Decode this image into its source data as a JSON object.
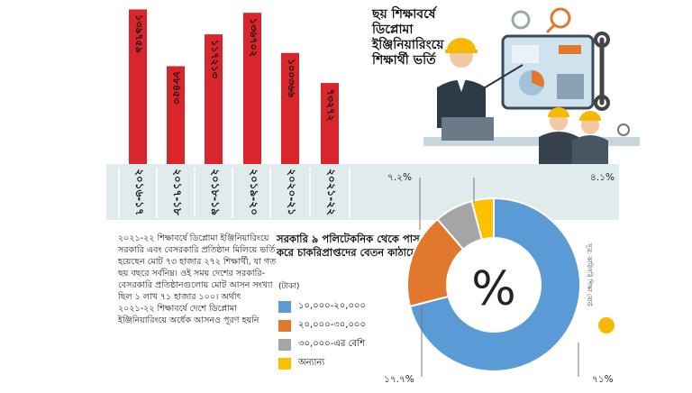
{
  "title": "ছয় শিক্ষাবর্ষে ডিপ্লোমা ইঞ্জিনিয়ারিংয়ে শিক্ষার্থী ভর্তি",
  "paragraph": "২০২১-২২ শিক্ষাবর্ষে ডিপ্লোমা ইঞ্জিনিয়ারিংয়ে সরকারি এবং বেসরকারি প্রতিষ্ঠান মিলিয়ে ভর্তি হয়েছেন মোট ৭৩ হাজার ২৭২ শিক্ষার্থী, যা গত ছয় বছরে সর্বনিম্ন। ওই সময় দেশের সরকারি-বেসরকারি প্রতিষ্ঠানগুলোয় মোট আসন সংখ্যা ছিল ১ লাখ ৭১ হাজার ১০০। অর্থাৎ ২০২১-২২ শিক্ষাবর্ষে দেশে ডিপ্লোমা ইঞ্জিনিয়ারিংয়ে অর্ধেক আসনও পূরণ হয়নি",
  "source": "সূত্র: কারিগরি শিক্ষা বোর্ড",
  "colors": {
    "bar": "#d9262c",
    "blue": "#5b9bd5",
    "orange": "#e2782e",
    "gray": "#a5a5a5",
    "yellow": "#ffc000"
  },
  "chart_data": [
    {
      "type": "bar",
      "categories": [
        "২০১৬-১৭",
        "২০১৭-১৮",
        "২০১৮-১৯",
        "২০১৯-২০",
        "২০২০-২১",
        "২০২১-২২"
      ],
      "category_values": [
        2016,
        2017,
        2018,
        2019,
        2020,
        2021
      ],
      "value_labels": [
        "১৩৯৭৫৯",
        "৮৮৪৫৩",
        "১১৭২১৩",
        "১৩৬৭০২",
        "১০০৩৬৬",
        "৭৩২৭২"
      ],
      "values": [
        139759,
        88453,
        117213,
        136702,
        100366,
        73272
      ],
      "ylim": [
        0,
        145000
      ],
      "title": "ছয় শিক্ষাবর্ষে ডিপ্লোমা ইঞ্জিনিয়ারিংয়ে শিক্ষার্থী ভর্তি"
    },
    {
      "type": "pie",
      "title": "সরকারি ৯ পলিটেকনিক থেকে পাস করে চাকরিপ্রাপ্তদের বেতন কাঠামো",
      "unit": "(টাকা)",
      "center_label": "%",
      "labels": [
        "১০,০০০-২০,০০০",
        "২০,০০০-৩০,০০০",
        "৩০,০০০-এর বেশি",
        "অন্যান্য"
      ],
      "values": [
        71,
        17.7,
        7.2,
        4.1
      ],
      "value_labels": [
        "৭১%",
        "১৭.৭%",
        "৭.২%",
        "৪.১%"
      ],
      "colors": [
        "#5b9bd5",
        "#e2782e",
        "#a5a5a5",
        "#ffc000"
      ]
    }
  ]
}
